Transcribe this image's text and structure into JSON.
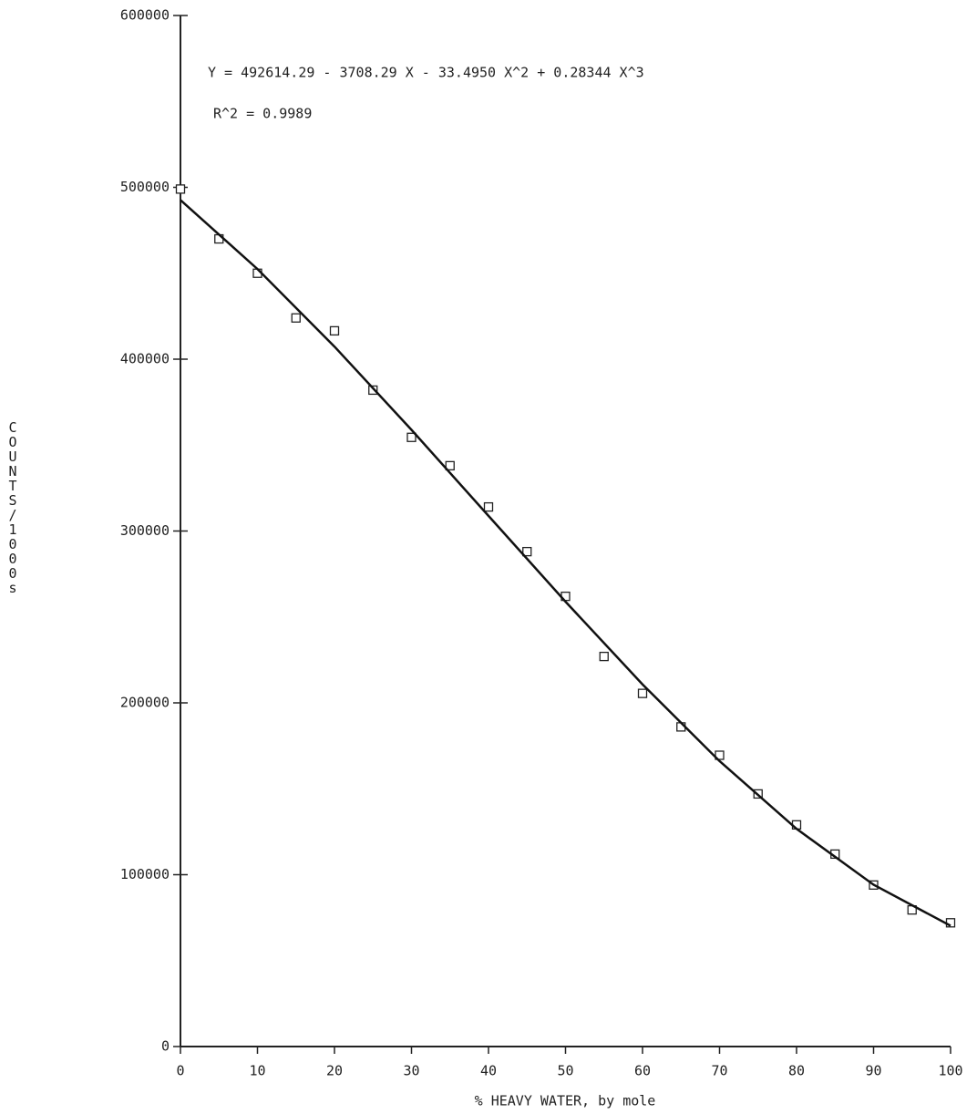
{
  "chart_data": {
    "type": "scatter",
    "xlabel": "% HEAVY WATER, by mole",
    "ylabel": "COUNTS/1000s",
    "annotations": [
      "Y = 492614.29 - 3708.29 X - 33.4950 X^2 + 0.28344 X^3",
      "R^2 = 0.9989"
    ],
    "xlim": [
      0,
      100
    ],
    "xticks": [
      0,
      10,
      20,
      30,
      40,
      50,
      60,
      70,
      80,
      90,
      100
    ],
    "ylim": [
      0,
      600000
    ],
    "yticks": [
      0,
      100000,
      200000,
      300000,
      400000,
      500000,
      600000
    ],
    "series": [
      {
        "kind": "points",
        "color": "#222222",
        "x": [
          0,
          5,
          10,
          15,
          20,
          25,
          30,
          35,
          40,
          45,
          50,
          55,
          60,
          65,
          70,
          75,
          80,
          85,
          90,
          95,
          100
        ],
        "values": [
          499000,
          470000,
          450000,
          424000,
          416500,
          382000,
          354500,
          338000,
          314000,
          288000,
          262000,
          227000,
          205500,
          186000,
          169500,
          147000,
          129000,
          112000,
          94000,
          79500,
          72000
        ]
      },
      {
        "kind": "line",
        "color": "#111111",
        "x": [
          0,
          10,
          20,
          30,
          40,
          50,
          60,
          70,
          80,
          90,
          100
        ],
        "values": [
          492614,
          452464,
          407318,
          358872,
          308830,
          258891,
          210758,
          166128,
          126704,
          94186,
          70275
        ]
      }
    ]
  }
}
